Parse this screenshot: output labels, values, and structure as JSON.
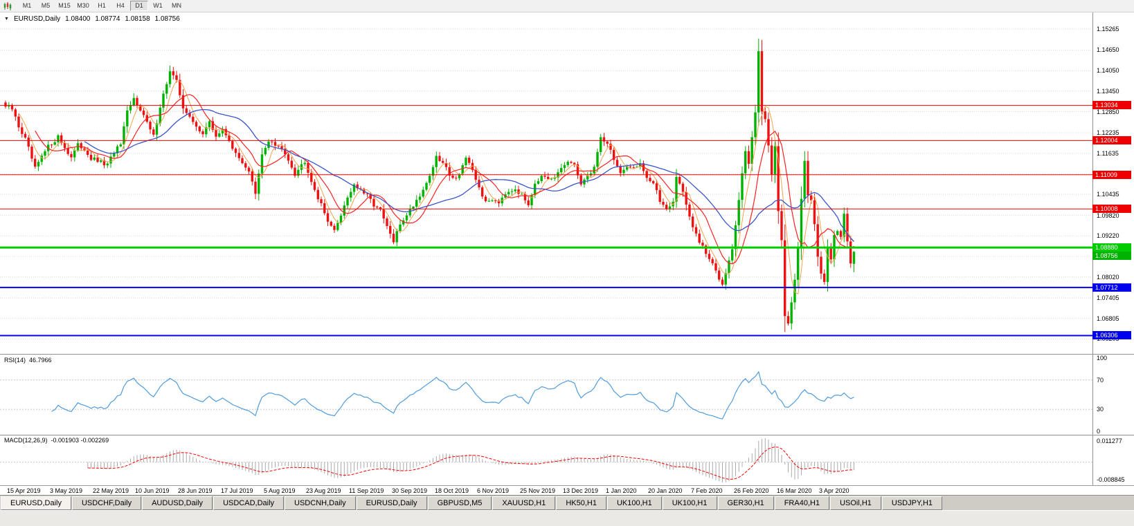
{
  "toolbar": {
    "timeframes": [
      "M1",
      "M5",
      "M15",
      "M30",
      "H1",
      "H4",
      "D1",
      "W1",
      "MN"
    ],
    "selected": "D1"
  },
  "chart": {
    "title_symbol": "EURUSD,Daily",
    "ohlc": {
      "open": "1.08400",
      "high": "1.08774",
      "low": "1.08158",
      "close": "1.08756"
    },
    "bid_label": "1.08756",
    "y_ticks": [
      "1.15265",
      "1.14650",
      "1.14050",
      "1.13450",
      "1.12850",
      "1.12235",
      "1.11635",
      "1.11035",
      "1.10435",
      "1.09820",
      "1.09220",
      "1.08620",
      "1.08020",
      "1.07405",
      "1.06805",
      "1.06205"
    ],
    "hlines": [
      {
        "price": 1.13034,
        "label": "1.13034",
        "color": "#ee0000",
        "width": 1
      },
      {
        "price": 1.12004,
        "label": "1.12004",
        "color": "#ee0000",
        "width": 1
      },
      {
        "price": 1.11009,
        "label": "1.11009",
        "color": "#ee0000",
        "width": 1
      },
      {
        "price": 1.10008,
        "label": "1.10008",
        "color": "#ee0000",
        "width": 1
      },
      {
        "price": 1.0888,
        "label": "1.08880",
        "color": "#00cc00",
        "width": 3
      },
      {
        "price": 1.07712,
        "label": "1.07712",
        "color": "#0000ee",
        "width": 2
      },
      {
        "price": 1.06306,
        "label": "1.06306",
        "color": "#0000ee",
        "width": 2
      }
    ],
    "x_labels": [
      "15 Apr 2019",
      "3 May 2019",
      "22 May 2019",
      "10 Jun 2019",
      "28 Jun 2019",
      "17 Jul 2019",
      "5 Aug 2019",
      "23 Aug 2019",
      "11 Sep 2019",
      "30 Sep 2019",
      "18 Oct 2019",
      "6 Nov 2019",
      "25 Nov 2019",
      "13 Dec 2019",
      "1 Jan 2020",
      "20 Jan 2020",
      "7 Feb 2020",
      "26 Feb 2020",
      "16 Mar 2020",
      "3 Apr 2020"
    ]
  },
  "rsi": {
    "name": "RSI(14)",
    "value": "46.7966",
    "levels": [
      "100",
      "70",
      "30",
      "0"
    ]
  },
  "macd": {
    "name": "MACD(12,26,9)",
    "value": "-0.001903 -0.002269",
    "scale_top": "0.011277",
    "scale_bottom": "-0.008845"
  },
  "tabs": {
    "active_index": 0,
    "items": [
      "EURUSD,Daily",
      "USDCHF,Daily",
      "AUDUSD,Daily",
      "USDCAD,Daily",
      "USDCNH,Daily",
      "EURUSD,Daily",
      "GBPUSD,M5",
      "XAUUSD,H1",
      "HK50,H1",
      "UK100,H1",
      "UK100,H1",
      "GER30,H1",
      "FRA40,H1",
      "USOil,H1",
      "USDJPY,H1"
    ]
  },
  "colors": {
    "candle_up": "#00b300",
    "candle_down": "#ee1111",
    "ma_fast": "#f4a24c",
    "ma_mid": "#ff2020",
    "ma_slow": "#3a55c8",
    "rsi": "#4f9bdc",
    "macd_hist": "#aaaaaa",
    "macd_signal": "#ff0000",
    "grid": "#d8d8d8",
    "bid_label_bg": "#00b300"
  },
  "chart_data": {
    "type": "candlestick",
    "symbol": "EURUSD",
    "timeframe": "Daily",
    "title": "EURUSD,Daily 1.08400 1.08774 1.08158 1.08756",
    "price_axis": {
      "max": 1.1575,
      "min": 1.0577
    },
    "ma_periods": [
      5,
      10,
      25
    ],
    "num_candles": 259,
    "close_anchors": [
      [
        0,
        1.13
      ],
      [
        2,
        1.1292
      ],
      [
        4,
        1.1242
      ],
      [
        6,
        1.1205
      ],
      [
        9,
        1.1118
      ],
      [
        11,
        1.1152
      ],
      [
        13,
        1.1183
      ],
      [
        16,
        1.1212
      ],
      [
        18,
        1.118
      ],
      [
        20,
        1.1152
      ],
      [
        22,
        1.1186
      ],
      [
        24,
        1.1176
      ],
      [
        26,
        1.1148
      ],
      [
        28,
        1.114
      ],
      [
        31,
        1.1128
      ],
      [
        33,
        1.1168
      ],
      [
        35,
        1.1188
      ],
      [
        37,
        1.1282
      ],
      [
        39,
        1.1322
      ],
      [
        41,
        1.1295
      ],
      [
        43,
        1.1252
      ],
      [
        45,
        1.1212
      ],
      [
        47,
        1.1302
      ],
      [
        50,
        1.1402
      ],
      [
        52,
        1.1372
      ],
      [
        54,
        1.13
      ],
      [
        56,
        1.1266
      ],
      [
        58,
        1.124
      ],
      [
        60,
        1.1224
      ],
      [
        62,
        1.1252
      ],
      [
        64,
        1.1214
      ],
      [
        66,
        1.123
      ],
      [
        68,
        1.1204
      ],
      [
        70,
        1.1158
      ],
      [
        72,
        1.1138
      ],
      [
        74,
        1.1112
      ],
      [
        76,
        1.1042
      ],
      [
        78,
        1.1158
      ],
      [
        80,
        1.1202
      ],
      [
        82,
        1.1186
      ],
      [
        84,
        1.1174
      ],
      [
        86,
        1.1148
      ],
      [
        88,
        1.1104
      ],
      [
        91,
        1.1142
      ],
      [
        93,
        1.1084
      ],
      [
        95,
        1.1034
      ],
      [
        97,
        1.0988
      ],
      [
        100,
        1.0934
      ],
      [
        102,
        1.0986
      ],
      [
        104,
        1.1036
      ],
      [
        106,
        1.1072
      ],
      [
        108,
        1.1054
      ],
      [
        110,
        1.1038
      ],
      [
        112,
        1.1014
      ],
      [
        114,
        1.0994
      ],
      [
        116,
        1.0948
      ],
      [
        118,
        1.0904
      ],
      [
        120,
        1.0956
      ],
      [
        122,
        1.0986
      ],
      [
        124,
        1.1012
      ],
      [
        126,
        1.1042
      ],
      [
        128,
        1.1076
      ],
      [
        131,
        1.115
      ],
      [
        133,
        1.1134
      ],
      [
        135,
        1.1104
      ],
      [
        137,
        1.1088
      ],
      [
        140,
        1.115
      ],
      [
        142,
        1.1108
      ],
      [
        144,
        1.1064
      ],
      [
        146,
        1.1018
      ],
      [
        148,
        1.103
      ],
      [
        150,
        1.1022
      ],
      [
        152,
        1.105
      ],
      [
        155,
        1.1062
      ],
      [
        157,
        1.1038
      ],
      [
        159,
        1.1016
      ],
      [
        161,
        1.1078
      ],
      [
        163,
        1.1094
      ],
      [
        165,
        1.1082
      ],
      [
        167,
        1.109
      ],
      [
        169,
        1.112
      ],
      [
        171,
        1.114
      ],
      [
        173,
        1.1124
      ],
      [
        175,
        1.1078
      ],
      [
        177,
        1.1094
      ],
      [
        179,
        1.1124
      ],
      [
        181,
        1.121
      ],
      [
        183,
        1.1194
      ],
      [
        185,
        1.1148
      ],
      [
        187,
        1.1104
      ],
      [
        189,
        1.1118
      ],
      [
        191,
        1.1124
      ],
      [
        193,
        1.1136
      ],
      [
        195,
        1.1094
      ],
      [
        197,
        1.1074
      ],
      [
        199,
        1.1024
      ],
      [
        201,
        1.1004
      ],
      [
        203,
        1.1022
      ],
      [
        204,
        1.1094
      ],
      [
        206,
        1.1054
      ],
      [
        208,
        1.0974
      ],
      [
        209,
        1.0946
      ],
      [
        211,
        1.0904
      ],
      [
        213,
        1.087
      ],
      [
        215,
        1.0838
      ],
      [
        217,
        1.08
      ],
      [
        218,
        1.0784
      ],
      [
        220,
        1.0856
      ],
      [
        221,
        1.088
      ],
      [
        223,
        1.1027
      ],
      [
        225,
        1.1172
      ],
      [
        226,
        1.1136
      ],
      [
        228,
        1.1284
      ],
      [
        229,
        1.1455
      ],
      [
        230,
        1.1281
      ],
      [
        231,
        1.1268
      ],
      [
        232,
        1.1184
      ],
      [
        233,
        1.1105
      ],
      [
        234,
        1.1182
      ],
      [
        235,
        1.0995
      ],
      [
        236,
        1.0915
      ],
      [
        237,
        1.0692
      ],
      [
        238,
        1.067
      ],
      [
        239,
        1.0727
      ],
      [
        240,
        1.0789
      ],
      [
        241,
        1.0884
      ],
      [
        242,
        1.103
      ],
      [
        243,
        1.114
      ],
      [
        244,
        1.1047
      ],
      [
        245,
        1.1031
      ],
      [
        246,
        1.0961
      ],
      [
        247,
        1.0858
      ],
      [
        248,
        1.081
      ],
      [
        249,
        1.0791
      ],
      [
        250,
        1.0893
      ],
      [
        251,
        1.0856
      ],
      [
        252,
        1.093
      ],
      [
        253,
        1.0935
      ],
      [
        254,
        1.0913
      ],
      [
        255,
        1.098
      ],
      [
        256,
        1.091
      ],
      [
        257,
        1.084
      ],
      [
        258,
        1.0876
      ]
    ]
  }
}
